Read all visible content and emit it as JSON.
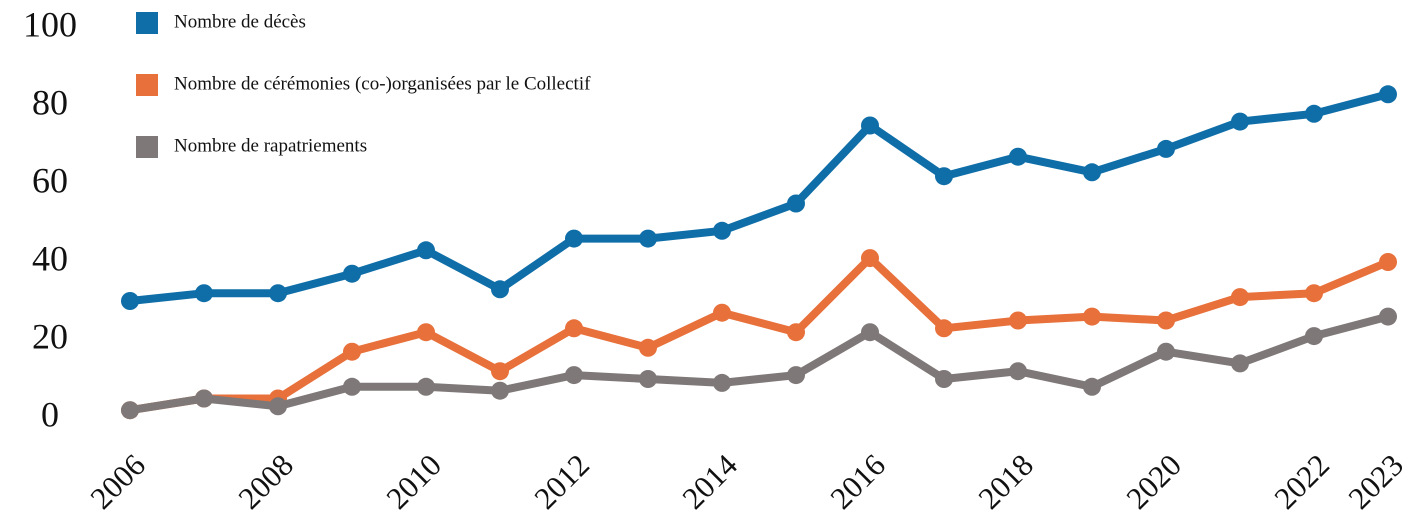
{
  "chart_data": {
    "type": "line",
    "x": [
      2006,
      2007,
      2008,
      2009,
      2010,
      2011,
      2012,
      2013,
      2014,
      2015,
      2016,
      2017,
      2018,
      2019,
      2020,
      2021,
      2022,
      2023
    ],
    "series": [
      {
        "name": "Nombre de décès",
        "color": "#0f6ea8",
        "values": [
          30,
          32,
          32,
          37,
          43,
          33,
          46,
          46,
          48,
          55,
          75,
          62,
          67,
          63,
          69,
          76,
          78,
          83
        ]
      },
      {
        "name": "Nombre de cérémonies (co-)organisées par le Collectif",
        "color": "#e8703a",
        "values": [
          2,
          5,
          5,
          17,
          22,
          12,
          23,
          18,
          27,
          22,
          41,
          23,
          25,
          26,
          25,
          31,
          32,
          40
        ]
      },
      {
        "name": "Nombre de rapatriements",
        "color": "#7f7878",
        "values": [
          2,
          5,
          3,
          8,
          8,
          7,
          11,
          10,
          9,
          11,
          22,
          10,
          12,
          8,
          17,
          14,
          21,
          26
        ]
      }
    ],
    "xlim": [
      2006,
      2023
    ],
    "xticks": [
      2006,
      2008,
      2010,
      2012,
      2014,
      2016,
      2018,
      2020,
      2022,
      2023
    ],
    "ylim": [
      0,
      100
    ],
    "yticks": [
      0,
      20,
      40,
      60,
      80,
      100
    ],
    "grid": false,
    "legend": "top-left"
  }
}
